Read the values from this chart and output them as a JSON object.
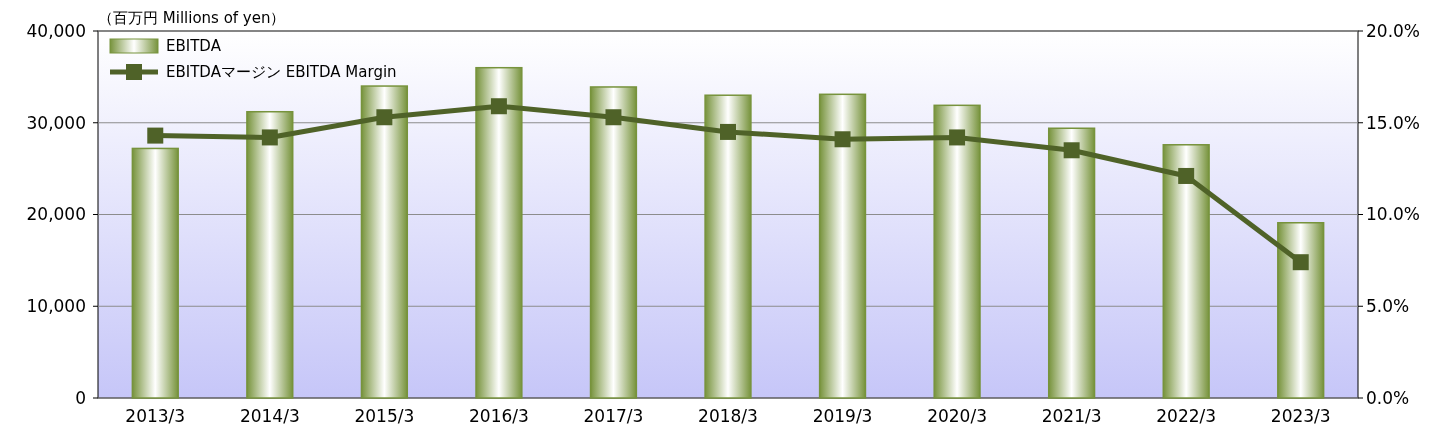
{
  "chart_data": {
    "type": "bar",
    "ylabel": "（百万円  Millions of yen）",
    "categories": [
      "2013/3",
      "2014/3",
      "2015/3",
      "2016/3",
      "2017/3",
      "2018/3",
      "2019/3",
      "2020/3",
      "2021/3",
      "2022/3",
      "2023/3"
    ],
    "series": [
      {
        "name": "EBITDA",
        "color": "#77933c",
        "values": [
          27200,
          31200,
          34000,
          36000,
          33900,
          33000,
          33100,
          31900,
          29400,
          27600,
          19100
        ]
      },
      {
        "name": "EBITDAマージン EBITDA Margin",
        "type": "line",
        "axis": "y2",
        "color": "#4f6228",
        "values": [
          14.3,
          14.2,
          15.3,
          15.9,
          15.3,
          14.5,
          14.1,
          14.2,
          13.5,
          12.1,
          7.4
        ]
      }
    ],
    "ylim": [
      0,
      40000
    ],
    "yticks": [
      {
        "value": 0,
        "label": "0"
      },
      {
        "value": 10000,
        "label": "10,000"
      },
      {
        "value": 20000,
        "label": "20,000"
      },
      {
        "value": 30000,
        "label": "30,000"
      },
      {
        "value": 40000,
        "label": "40,000"
      }
    ],
    "y2lim": [
      0,
      20
    ],
    "y2ticks": [
      {
        "value": 0,
        "label": "0.0%"
      },
      {
        "value": 5,
        "label": "5.0%"
      },
      {
        "value": 10,
        "label": "10.0%"
      },
      {
        "value": 15,
        "label": "15.0%"
      },
      {
        "value": 20,
        "label": "20.0%"
      }
    ],
    "grid": "y",
    "legend": "top left",
    "marker": "square",
    "line_style": "solid"
  }
}
